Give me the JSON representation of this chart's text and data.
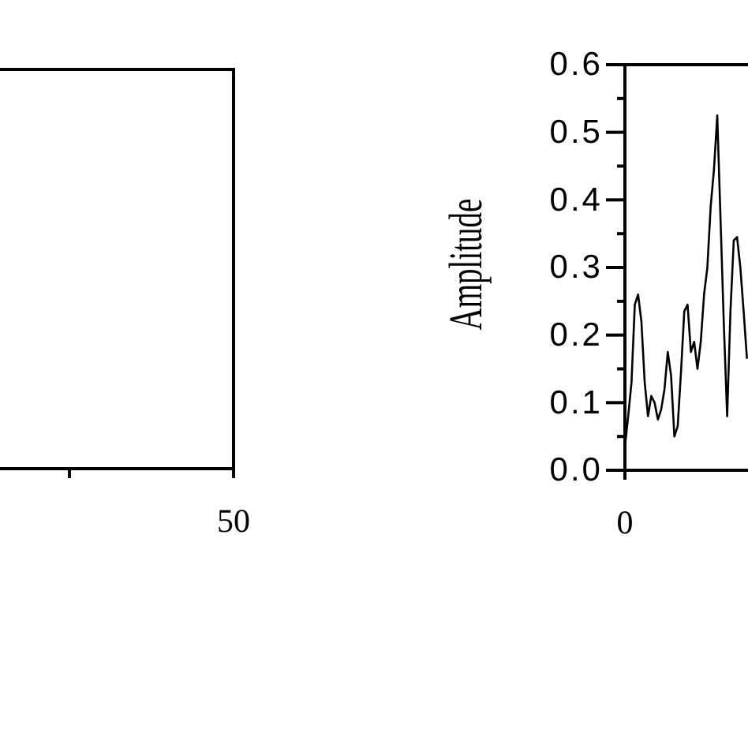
{
  "chart_data": [
    {
      "type": "other",
      "annotations": [
        "50"
      ]
    },
    {
      "type": "line",
      "ylabel": "Amplitude",
      "annotations": [
        "0"
      ],
      "categories": [
        null,
        null,
        null,
        null,
        null,
        null,
        null,
        null,
        null,
        null,
        null,
        null,
        null,
        null,
        null,
        null,
        null,
        null,
        null,
        null,
        null,
        null,
        null,
        null,
        null,
        null,
        null,
        null,
        null,
        null,
        null,
        null,
        null,
        null,
        null,
        null,
        null,
        null
      ],
      "ylim": [
        0,
        0.6
      ],
      "yticks": [
        {
          "value": 0,
          "label": "0.0"
        },
        {
          "value": 0.05,
          "label": null
        },
        {
          "value": 0.1,
          "label": "0.1"
        },
        {
          "value": 0.15,
          "label": null
        },
        {
          "value": 0.2,
          "label": "0.2"
        },
        {
          "value": 0.25,
          "label": null
        },
        {
          "value": 0.3,
          "label": "0.3"
        },
        {
          "value": 0.35,
          "label": null
        },
        {
          "value": 0.4,
          "label": "0.4"
        },
        {
          "value": 0.45,
          "label": null
        },
        {
          "value": 0.5,
          "label": "0.5"
        },
        {
          "value": 0.55,
          "label": null
        },
        {
          "value": 0.6,
          "label": "0.6"
        }
      ],
      "series": [
        {
          "color": "#000000",
          "values": [
            0.035,
            0.08,
            0.13,
            0.245,
            0.26,
            0.22,
            0.13,
            0.08,
            0.11,
            0.1,
            0.075,
            0.09,
            0.12,
            0.175,
            0.14,
            0.05,
            0.065,
            0.145,
            0.235,
            0.245,
            0.175,
            0.19,
            0.15,
            0.19,
            0.26,
            0.3,
            0.39,
            0.445,
            0.525,
            0.37,
            0.215,
            0.08,
            0.235,
            0.34,
            0.345,
            0.3,
            0.235,
            0.165
          ]
        }
      ]
    }
  ]
}
